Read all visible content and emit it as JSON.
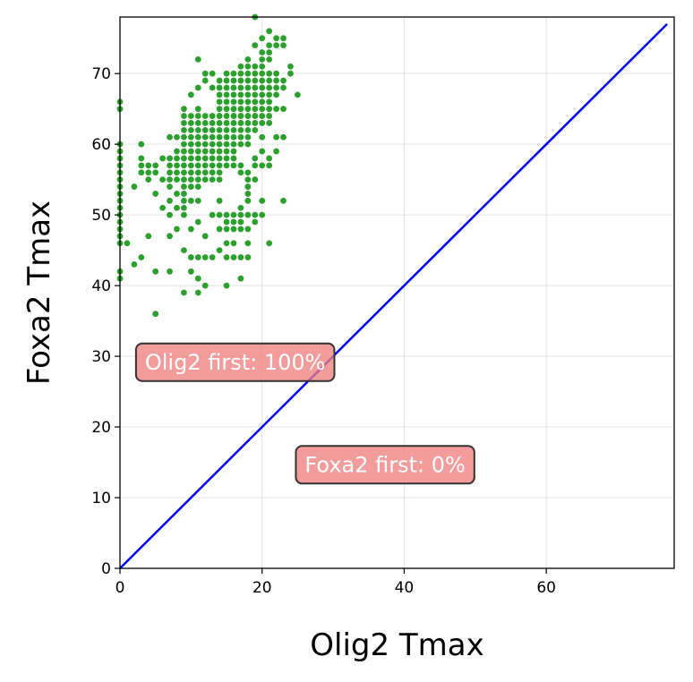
{
  "chart_data": {
    "type": "scatter",
    "xlabel": "Olig2 Tmax",
    "ylabel": "Foxa2 Tmax",
    "xlim": [
      0,
      78
    ],
    "ylim": [
      0,
      78
    ],
    "xticks": [
      0,
      20,
      40,
      60
    ],
    "yticks": [
      0,
      10,
      20,
      30,
      40,
      50,
      60,
      70
    ],
    "grid": true,
    "colors": {
      "points": "#2ca02c",
      "diagonal": "#0000ff",
      "annotation_fill": "#f08080",
      "annotation_edge": "#333333"
    },
    "diagonal": {
      "from": [
        0,
        0
      ],
      "to": [
        77,
        77
      ]
    },
    "annotations": [
      {
        "text": "Olig2 first: 100%",
        "x": 2,
        "y": 27
      },
      {
        "text": "Foxa2 first: 0%",
        "x": 24.5,
        "y": 12.5
      }
    ],
    "series": [
      {
        "points": [
          [
            0,
            41
          ],
          [
            0,
            42
          ],
          [
            0,
            46
          ],
          [
            0,
            47
          ],
          [
            0,
            48
          ],
          [
            0,
            49
          ],
          [
            0,
            50
          ],
          [
            0,
            51
          ],
          [
            0,
            52
          ],
          [
            0,
            53
          ],
          [
            0,
            54
          ],
          [
            0,
            55
          ],
          [
            0,
            56
          ],
          [
            0,
            57
          ],
          [
            0,
            58
          ],
          [
            0,
            59
          ],
          [
            0,
            60
          ],
          [
            0,
            65
          ],
          [
            0,
            66
          ],
          [
            1,
            46
          ],
          [
            2,
            43
          ],
          [
            2,
            54
          ],
          [
            3,
            44
          ],
          [
            3,
            56
          ],
          [
            3,
            57
          ],
          [
            3,
            58
          ],
          [
            3,
            60
          ],
          [
            4,
            47
          ],
          [
            4,
            55
          ],
          [
            4,
            56
          ],
          [
            4,
            57
          ],
          [
            5,
            36
          ],
          [
            5,
            42
          ],
          [
            5,
            53
          ],
          [
            5,
            56
          ],
          [
            5,
            57
          ],
          [
            6,
            51
          ],
          [
            6,
            55
          ],
          [
            6,
            58
          ],
          [
            7,
            42
          ],
          [
            7,
            47
          ],
          [
            7,
            50
          ],
          [
            7,
            52
          ],
          [
            7,
            54
          ],
          [
            7,
            55
          ],
          [
            7,
            56
          ],
          [
            7,
            57
          ],
          [
            7,
            58
          ],
          [
            7,
            61
          ],
          [
            8,
            48
          ],
          [
            8,
            51
          ],
          [
            8,
            53
          ],
          [
            8,
            55
          ],
          [
            8,
            56
          ],
          [
            8,
            57
          ],
          [
            8,
            58
          ],
          [
            8,
            59
          ],
          [
            8,
            61
          ],
          [
            9,
            39
          ],
          [
            9,
            45
          ],
          [
            9,
            50
          ],
          [
            9,
            51
          ],
          [
            9,
            52
          ],
          [
            9,
            53
          ],
          [
            9,
            54
          ],
          [
            9,
            55
          ],
          [
            9,
            56
          ],
          [
            9,
            57
          ],
          [
            9,
            58
          ],
          [
            9,
            59
          ],
          [
            9,
            60
          ],
          [
            9,
            61
          ],
          [
            9,
            62
          ],
          [
            9,
            63
          ],
          [
            9,
            64
          ],
          [
            9,
            65
          ],
          [
            10,
            42
          ],
          [
            10,
            44
          ],
          [
            10,
            48
          ],
          [
            10,
            52
          ],
          [
            10,
            54
          ],
          [
            10,
            55
          ],
          [
            10,
            56
          ],
          [
            10,
            57
          ],
          [
            10,
            58
          ],
          [
            10,
            59
          ],
          [
            10,
            60
          ],
          [
            10,
            61
          ],
          [
            10,
            62
          ],
          [
            10,
            63
          ],
          [
            10,
            64
          ],
          [
            10,
            67
          ],
          [
            11,
            39
          ],
          [
            11,
            41
          ],
          [
            11,
            44
          ],
          [
            11,
            49
          ],
          [
            11,
            52
          ],
          [
            11,
            54
          ],
          [
            11,
            55
          ],
          [
            11,
            56
          ],
          [
            11,
            57
          ],
          [
            11,
            58
          ],
          [
            11,
            59
          ],
          [
            11,
            60
          ],
          [
            11,
            61
          ],
          [
            11,
            62
          ],
          [
            11,
            63
          ],
          [
            11,
            64
          ],
          [
            11,
            65
          ],
          [
            11,
            68
          ],
          [
            11,
            72
          ],
          [
            12,
            40
          ],
          [
            12,
            44
          ],
          [
            12,
            47
          ],
          [
            12,
            55
          ],
          [
            12,
            56
          ],
          [
            12,
            57
          ],
          [
            12,
            58
          ],
          [
            12,
            59
          ],
          [
            12,
            60
          ],
          [
            12,
            61
          ],
          [
            12,
            62
          ],
          [
            12,
            63
          ],
          [
            12,
            64
          ],
          [
            12,
            69
          ],
          [
            12,
            70
          ],
          [
            13,
            44
          ],
          [
            13,
            50
          ],
          [
            13,
            55
          ],
          [
            13,
            56
          ],
          [
            13,
            57
          ],
          [
            13,
            58
          ],
          [
            13,
            59
          ],
          [
            13,
            60
          ],
          [
            13,
            61
          ],
          [
            13,
            62
          ],
          [
            13,
            63
          ],
          [
            13,
            64
          ],
          [
            13,
            68
          ],
          [
            13,
            70
          ],
          [
            14,
            45
          ],
          [
            14,
            48
          ],
          [
            14,
            50
          ],
          [
            14,
            52
          ],
          [
            14,
            55
          ],
          [
            14,
            56
          ],
          [
            14,
            57
          ],
          [
            14,
            58
          ],
          [
            14,
            59
          ],
          [
            14,
            60
          ],
          [
            14,
            61
          ],
          [
            14,
            62
          ],
          [
            14,
            63
          ],
          [
            14,
            64
          ],
          [
            14,
            65
          ],
          [
            14,
            66
          ],
          [
            14,
            67
          ],
          [
            14,
            68
          ],
          [
            14,
            69
          ],
          [
            15,
            40
          ],
          [
            15,
            44
          ],
          [
            15,
            46
          ],
          [
            15,
            48
          ],
          [
            15,
            49
          ],
          [
            15,
            50
          ],
          [
            15,
            57
          ],
          [
            15,
            58
          ],
          [
            15,
            59
          ],
          [
            15,
            60
          ],
          [
            15,
            61
          ],
          [
            15,
            62
          ],
          [
            15,
            63
          ],
          [
            15,
            64
          ],
          [
            15,
            65
          ],
          [
            15,
            66
          ],
          [
            15,
            67
          ],
          [
            15,
            68
          ],
          [
            15,
            69
          ],
          [
            15,
            70
          ],
          [
            16,
            44
          ],
          [
            16,
            46
          ],
          [
            16,
            48
          ],
          [
            16,
            49
          ],
          [
            16,
            50
          ],
          [
            16,
            57
          ],
          [
            16,
            58
          ],
          [
            16,
            59
          ],
          [
            16,
            60
          ],
          [
            16,
            61
          ],
          [
            16,
            62
          ],
          [
            16,
            63
          ],
          [
            16,
            64
          ],
          [
            16,
            65
          ],
          [
            16,
            66
          ],
          [
            16,
            67
          ],
          [
            16,
            68
          ],
          [
            16,
            69
          ],
          [
            16,
            70
          ],
          [
            17,
            41
          ],
          [
            17,
            44
          ],
          [
            17,
            48
          ],
          [
            17,
            49
          ],
          [
            17,
            50
          ],
          [
            17,
            51
          ],
          [
            17,
            56
          ],
          [
            17,
            57
          ],
          [
            17,
            60
          ],
          [
            17,
            61
          ],
          [
            17,
            62
          ],
          [
            17,
            63
          ],
          [
            17,
            64
          ],
          [
            17,
            65
          ],
          [
            17,
            66
          ],
          [
            17,
            67
          ],
          [
            17,
            68
          ],
          [
            17,
            69
          ],
          [
            17,
            70
          ],
          [
            17,
            71
          ],
          [
            18,
            44
          ],
          [
            18,
            46
          ],
          [
            18,
            48
          ],
          [
            18,
            50
          ],
          [
            18,
            52
          ],
          [
            18,
            53
          ],
          [
            18,
            54
          ],
          [
            18,
            55
          ],
          [
            18,
            56
          ],
          [
            18,
            60
          ],
          [
            18,
            61
          ],
          [
            18,
            62
          ],
          [
            18,
            63
          ],
          [
            18,
            64
          ],
          [
            18,
            65
          ],
          [
            18,
            66
          ],
          [
            18,
            67
          ],
          [
            18,
            68
          ],
          [
            18,
            69
          ],
          [
            18,
            70
          ],
          [
            18,
            71
          ],
          [
            18,
            72
          ],
          [
            19,
            49
          ],
          [
            19,
            50
          ],
          [
            19,
            55
          ],
          [
            19,
            57
          ],
          [
            19,
            58
          ],
          [
            19,
            62
          ],
          [
            19,
            63
          ],
          [
            19,
            64
          ],
          [
            19,
            65
          ],
          [
            19,
            66
          ],
          [
            19,
            67
          ],
          [
            19,
            68
          ],
          [
            19,
            69
          ],
          [
            19,
            70
          ],
          [
            19,
            71
          ],
          [
            19,
            74
          ],
          [
            19,
            78
          ],
          [
            20,
            50
          ],
          [
            20,
            52
          ],
          [
            20,
            57
          ],
          [
            20,
            59
          ],
          [
            20,
            61
          ],
          [
            20,
            63
          ],
          [
            20,
            64
          ],
          [
            20,
            65
          ],
          [
            20,
            66
          ],
          [
            20,
            67
          ],
          [
            20,
            68
          ],
          [
            20,
            69
          ],
          [
            20,
            70
          ],
          [
            20,
            71
          ],
          [
            20,
            72
          ],
          [
            20,
            73
          ],
          [
            20,
            75
          ],
          [
            21,
            46
          ],
          [
            21,
            57
          ],
          [
            21,
            58
          ],
          [
            21,
            63
          ],
          [
            21,
            64
          ],
          [
            21,
            65
          ],
          [
            21,
            66
          ],
          [
            21,
            67
          ],
          [
            21,
            68
          ],
          [
            21,
            69
          ],
          [
            21,
            70
          ],
          [
            21,
            72
          ],
          [
            21,
            73
          ],
          [
            21,
            74
          ],
          [
            21,
            76
          ],
          [
            22,
            59
          ],
          [
            22,
            61
          ],
          [
            22,
            65
          ],
          [
            22,
            67
          ],
          [
            22,
            68
          ],
          [
            22,
            69
          ],
          [
            22,
            70
          ],
          [
            22,
            74
          ],
          [
            22,
            75
          ],
          [
            23,
            52
          ],
          [
            23,
            61
          ],
          [
            23,
            65
          ],
          [
            23,
            68
          ],
          [
            23,
            69
          ],
          [
            23,
            74
          ],
          [
            23,
            75
          ],
          [
            24,
            70
          ],
          [
            24,
            71
          ],
          [
            25,
            67
          ]
        ]
      }
    ]
  }
}
